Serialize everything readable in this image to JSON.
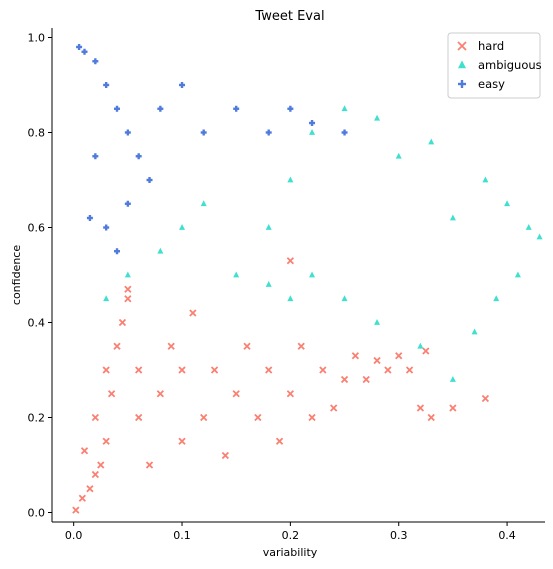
{
  "chart_data": {
    "type": "scatter",
    "title": "Tweet Eval",
    "xlabel": "variability",
    "ylabel": "confidence",
    "xlim": [
      -0.02,
      0.435
    ],
    "ylim": [
      -0.02,
      1.02
    ],
    "xticks": [
      0.0,
      0.1,
      0.2,
      0.3,
      0.4
    ],
    "xtick_labels": [
      "0.0",
      "0.1",
      "0.2",
      "0.3",
      "0.4"
    ],
    "yticks": [
      0.0,
      0.2,
      0.4,
      0.6,
      0.8,
      1.0
    ],
    "ytick_labels": [
      "0.0",
      "0.2",
      "0.4",
      "0.6",
      "0.8",
      "1.0"
    ],
    "grid": false,
    "legend_position": "top-right",
    "series": [
      {
        "name": "hard",
        "color": "#fa8072",
        "marker": "x",
        "points": [
          [
            0.002,
            0.005
          ],
          [
            0.008,
            0.03
          ],
          [
            0.015,
            0.05
          ],
          [
            0.02,
            0.08
          ],
          [
            0.025,
            0.1
          ],
          [
            0.01,
            0.13
          ],
          [
            0.03,
            0.15
          ],
          [
            0.02,
            0.2
          ],
          [
            0.035,
            0.25
          ],
          [
            0.03,
            0.3
          ],
          [
            0.04,
            0.35
          ],
          [
            0.045,
            0.4
          ],
          [
            0.05,
            0.45
          ],
          [
            0.06,
            0.2
          ],
          [
            0.06,
            0.3
          ],
          [
            0.07,
            0.1
          ],
          [
            0.08,
            0.25
          ],
          [
            0.09,
            0.35
          ],
          [
            0.1,
            0.15
          ],
          [
            0.1,
            0.3
          ],
          [
            0.11,
            0.42
          ],
          [
            0.12,
            0.2
          ],
          [
            0.13,
            0.3
          ],
          [
            0.14,
            0.12
          ],
          [
            0.15,
            0.25
          ],
          [
            0.16,
            0.35
          ],
          [
            0.17,
            0.2
          ],
          [
            0.18,
            0.3
          ],
          [
            0.19,
            0.15
          ],
          [
            0.2,
            0.25
          ],
          [
            0.21,
            0.35
          ],
          [
            0.22,
            0.2
          ],
          [
            0.23,
            0.3
          ],
          [
            0.24,
            0.22
          ],
          [
            0.25,
            0.28
          ],
          [
            0.26,
            0.33
          ],
          [
            0.27,
            0.28
          ],
          [
            0.28,
            0.32
          ],
          [
            0.29,
            0.3
          ],
          [
            0.3,
            0.33
          ],
          [
            0.31,
            0.3
          ],
          [
            0.32,
            0.22
          ],
          [
            0.33,
            0.2
          ],
          [
            0.35,
            0.22
          ],
          [
            0.38,
            0.24
          ],
          [
            0.325,
            0.34
          ],
          [
            0.2,
            0.53
          ],
          [
            0.05,
            0.47
          ]
        ]
      },
      {
        "name": "ambiguous",
        "color": "#40e0d0",
        "marker": "^",
        "points": [
          [
            0.03,
            0.45
          ],
          [
            0.05,
            0.5
          ],
          [
            0.08,
            0.55
          ],
          [
            0.1,
            0.6
          ],
          [
            0.12,
            0.65
          ],
          [
            0.15,
            0.5
          ],
          [
            0.18,
            0.6
          ],
          [
            0.2,
            0.7
          ],
          [
            0.22,
            0.8
          ],
          [
            0.25,
            0.85
          ],
          [
            0.28,
            0.83
          ],
          [
            0.3,
            0.75
          ],
          [
            0.33,
            0.78
          ],
          [
            0.35,
            0.62
          ],
          [
            0.38,
            0.7
          ],
          [
            0.4,
            0.65
          ],
          [
            0.42,
            0.6
          ],
          [
            0.43,
            0.58
          ],
          [
            0.41,
            0.5
          ],
          [
            0.39,
            0.45
          ],
          [
            0.37,
            0.38
          ],
          [
            0.35,
            0.28
          ],
          [
            0.32,
            0.35
          ],
          [
            0.28,
            0.4
          ],
          [
            0.25,
            0.45
          ],
          [
            0.22,
            0.5
          ],
          [
            0.2,
            0.45
          ],
          [
            0.18,
            0.48
          ]
        ]
      },
      {
        "name": "easy",
        "color": "#4f7bdc",
        "marker": "P",
        "points": [
          [
            0.005,
            0.98
          ],
          [
            0.01,
            0.97
          ],
          [
            0.02,
            0.95
          ],
          [
            0.03,
            0.9
          ],
          [
            0.04,
            0.85
          ],
          [
            0.05,
            0.8
          ],
          [
            0.06,
            0.75
          ],
          [
            0.07,
            0.7
          ],
          [
            0.08,
            0.85
          ],
          [
            0.1,
            0.9
          ],
          [
            0.12,
            0.8
          ],
          [
            0.15,
            0.85
          ],
          [
            0.18,
            0.8
          ],
          [
            0.2,
            0.85
          ],
          [
            0.22,
            0.82
          ],
          [
            0.25,
            0.8
          ],
          [
            0.03,
            0.6
          ],
          [
            0.04,
            0.55
          ],
          [
            0.05,
            0.65
          ],
          [
            0.02,
            0.75
          ],
          [
            0.015,
            0.62
          ]
        ]
      }
    ]
  }
}
